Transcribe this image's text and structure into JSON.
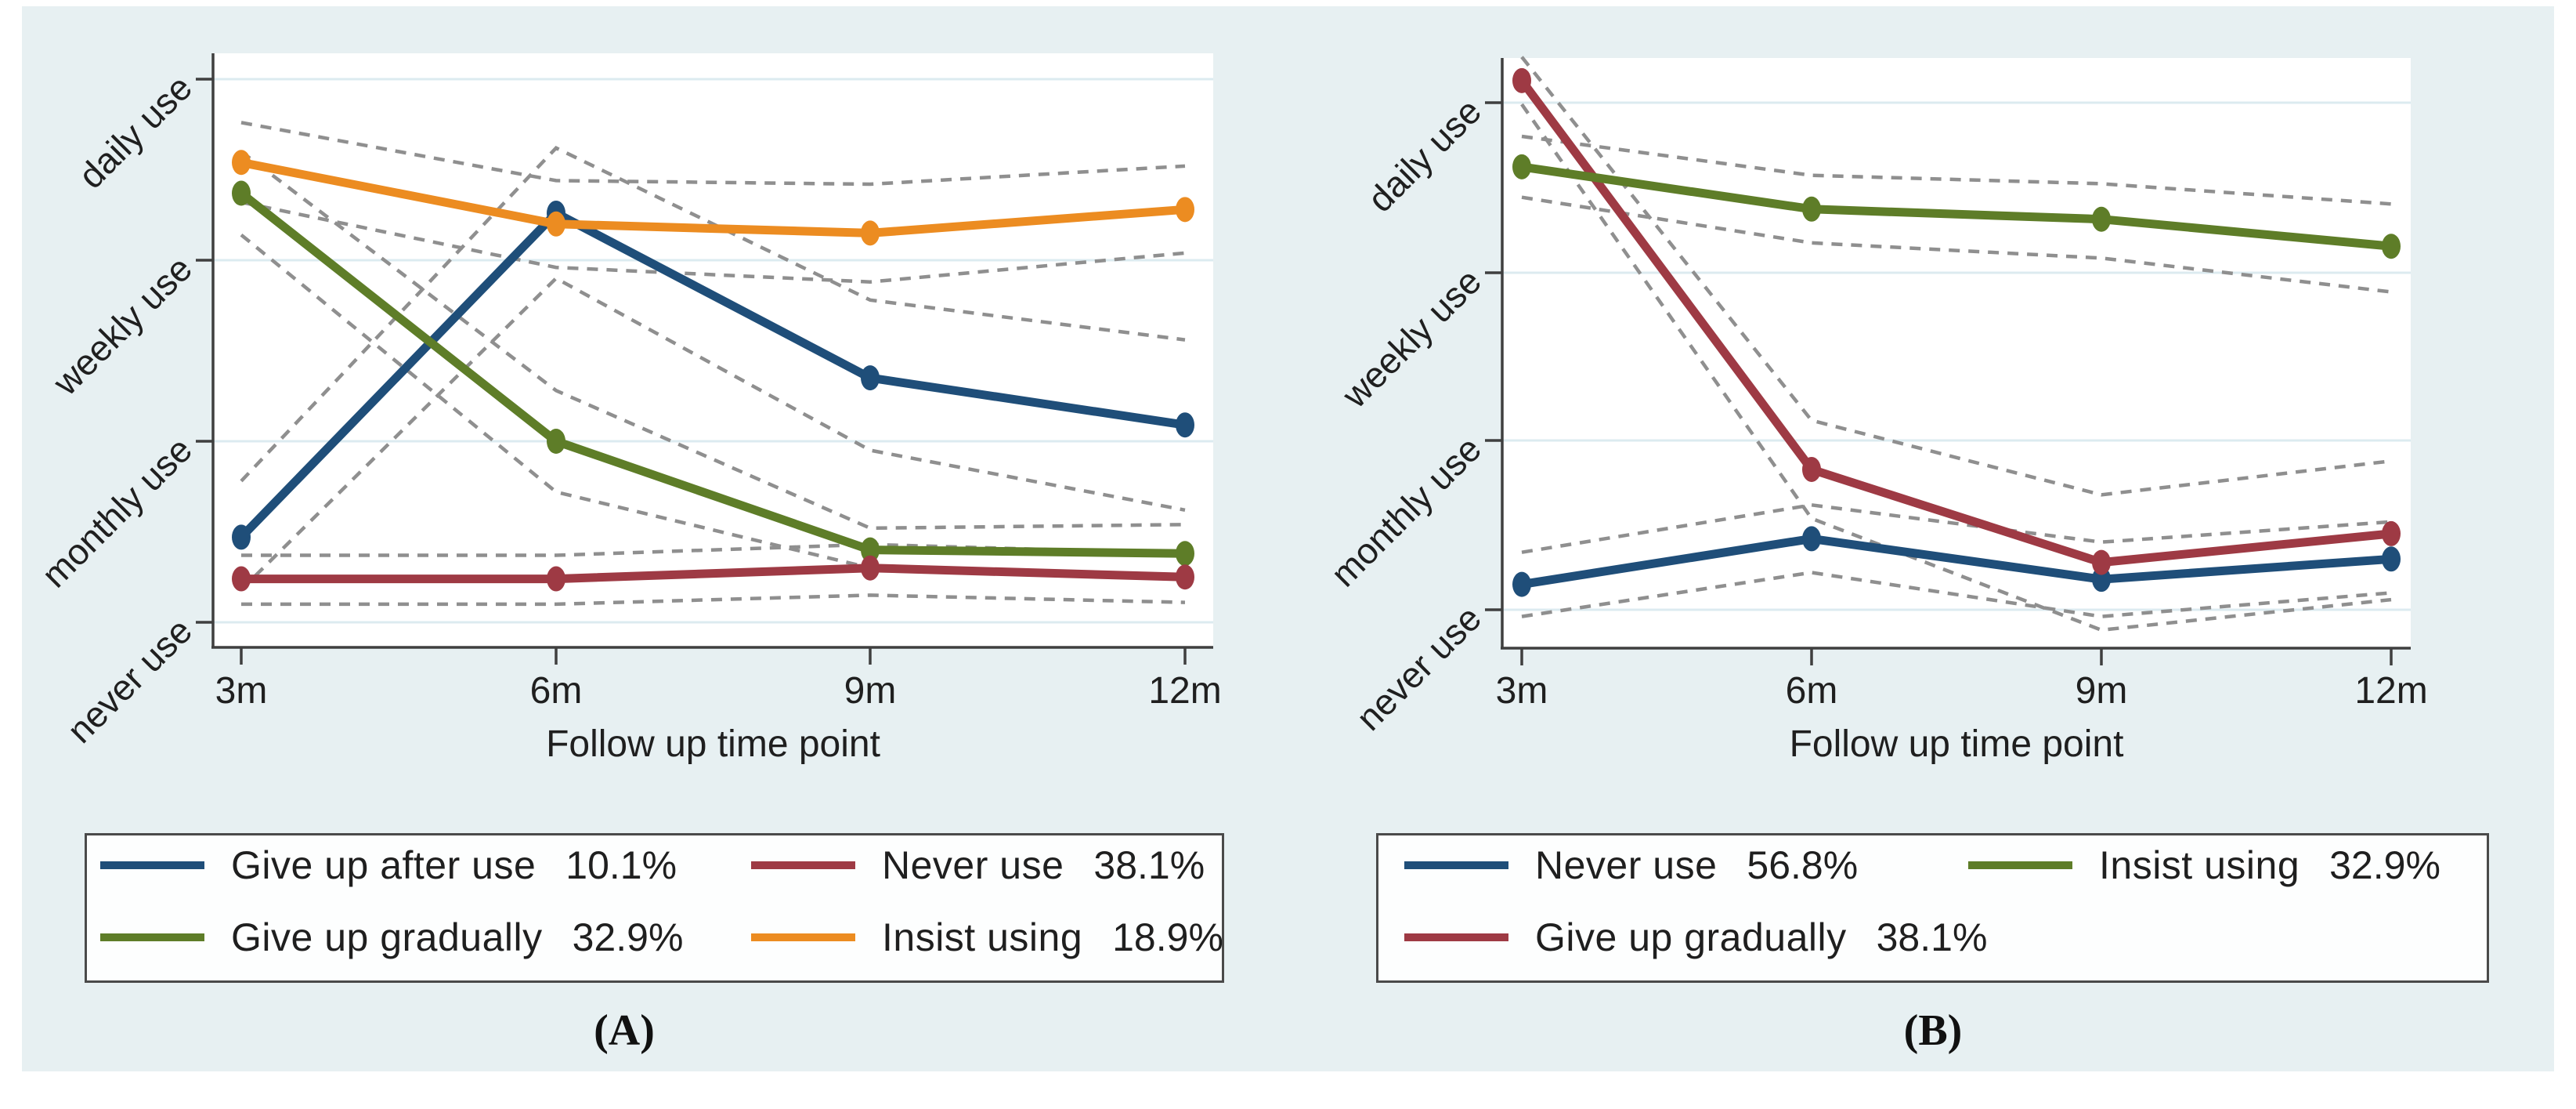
{
  "figure": {
    "background_color": "#e7f0f2",
    "plot_background_color": "#ffffff",
    "gridline_color": "#dcebf0",
    "axis_color": "#3f3f3f",
    "ci_line_color": "#8f8f8f",
    "caption_a": "(A)",
    "caption_b": "(B)"
  },
  "chart_data": [
    {
      "panel": "A",
      "type": "line",
      "categories": [
        "3m",
        "6m",
        "9m",
        "12m"
      ],
      "x_axis_title": "Follow up time point",
      "y_categories": [
        "never use",
        "monthly use",
        "weekly use",
        "daily use"
      ],
      "y_value_scale": "0=never use, 1=monthly use, 2=weekly use, 3=daily use",
      "ylim": [
        -0.15,
        3.15
      ],
      "grid": "horizontal",
      "legend_position": "bottom",
      "series": [
        {
          "name": "Give up after use",
          "pct": "10.1%",
          "color": "#1f4e79",
          "values": [
            0.47,
            2.26,
            1.35,
            1.09
          ],
          "ci_upper": [
            0.78,
            2.62,
            1.78,
            1.56
          ],
          "ci_lower": [
            0.18,
            1.9,
            0.95,
            0.62
          ]
        },
        {
          "name": "Give up gradually",
          "pct": "32.9%",
          "color": "#5e7d28",
          "values": [
            2.37,
            1.0,
            0.4,
            0.38
          ],
          "ci_upper": [
            2.6,
            1.28,
            0.52,
            0.54
          ],
          "ci_lower": [
            2.14,
            0.72,
            0.3,
            0.26
          ]
        },
        {
          "name": "Never use",
          "pct": "38.1%",
          "color": "#9e3a44",
          "values": [
            0.24,
            0.24,
            0.3,
            0.25
          ],
          "ci_upper": [
            0.37,
            0.37,
            0.43,
            0.38
          ],
          "ci_lower": [
            0.1,
            0.1,
            0.15,
            0.11
          ]
        },
        {
          "name": "Insist using",
          "pct": "18.9%",
          "color": "#ec8c21",
          "values": [
            2.54,
            2.2,
            2.15,
            2.28
          ],
          "ci_upper": [
            2.76,
            2.44,
            2.42,
            2.52
          ],
          "ci_lower": [
            2.32,
            1.96,
            1.88,
            2.04
          ]
        }
      ],
      "legend": {
        "entries": [
          {
            "label": "Give up after use",
            "pct": "10.1%",
            "color": "#1f4e79"
          },
          {
            "label": "Never use",
            "pct": "38.1%",
            "color": "#9e3a44"
          },
          {
            "label": "Give up gradually",
            "pct": "32.9%",
            "color": "#5e7d28"
          },
          {
            "label": "Insist using",
            "pct": "18.9%",
            "color": "#ec8c21"
          }
        ]
      },
      "caption": "(A)"
    },
    {
      "panel": "B",
      "type": "line",
      "categories": [
        "3m",
        "6m",
        "9m",
        "12m"
      ],
      "x_axis_title": "Follow up time point",
      "y_categories": [
        "never use",
        "monthly use",
        "weekly use",
        "daily use"
      ],
      "y_value_scale": "0=never use, 1=monthly use, 2=weekly use, 3=daily use",
      "ylim": [
        -0.23,
        3.26
      ],
      "grid": "horizontal",
      "legend_position": "bottom",
      "series": [
        {
          "name": "Never use",
          "pct": "56.8%",
          "color": "#1f4e79",
          "values": [
            0.15,
            0.42,
            0.18,
            0.3
          ],
          "ci_upper": [
            0.34,
            0.62,
            0.4,
            0.52
          ],
          "ci_lower": [
            -0.04,
            0.22,
            -0.04,
            0.1
          ]
        },
        {
          "name": "Give up gradually",
          "pct": "38.1%",
          "color": "#9e3a44",
          "values": [
            3.13,
            0.83,
            0.28,
            0.45
          ],
          "ci_upper": [
            3.27,
            1.12,
            0.68,
            0.88
          ],
          "ci_lower": [
            2.99,
            0.54,
            -0.12,
            0.06
          ]
        },
        {
          "name": "Insist using",
          "pct": "32.9%",
          "color": "#5e7d28",
          "values": [
            2.62,
            2.37,
            2.31,
            2.15
          ],
          "ci_upper": [
            2.8,
            2.57,
            2.52,
            2.4
          ],
          "ci_lower": [
            2.44,
            2.17,
            2.08,
            1.88
          ]
        }
      ],
      "legend": {
        "entries": [
          {
            "label": "Never use",
            "pct": "56.8%",
            "color": "#1f4e79"
          },
          {
            "label": "Insist using",
            "pct": "32.9%",
            "color": "#5e7d28"
          },
          {
            "label": "Give up gradually",
            "pct": "38.1%",
            "color": "#9e3a44"
          }
        ]
      },
      "caption": "(B)"
    }
  ]
}
